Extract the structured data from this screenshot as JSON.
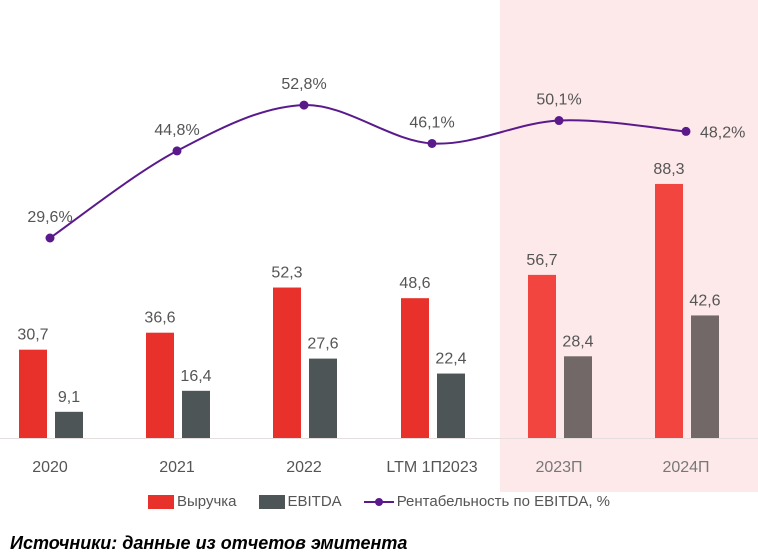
{
  "chart_data": {
    "type": "bar",
    "categories": [
      "2020",
      "2021",
      "2022",
      "LTM 1П2023",
      "2023П",
      "2024П"
    ],
    "forecast_categories": [
      "2023П",
      "2024П"
    ],
    "series": [
      {
        "name": "Выручка",
        "kind": "bar",
        "values": [
          30.7,
          36.6,
          52.3,
          48.6,
          56.7,
          88.3
        ],
        "labels": [
          "30,7",
          "36,6",
          "52,3",
          "48,6",
          "56,7",
          "88,3"
        ],
        "color": "#e8312a",
        "forecast_color": "#f2453f"
      },
      {
        "name": "EBITDA",
        "kind": "bar",
        "values": [
          9.1,
          16.4,
          27.6,
          22.4,
          28.4,
          42.6
        ],
        "labels": [
          "9,1",
          "16,4",
          "27,6",
          "22,4",
          "28,4",
          "42,6"
        ],
        "color": "#4d5557",
        "forecast_color": "#726868"
      },
      {
        "name": "Рентабельность по EBITDA, %",
        "kind": "line",
        "values": [
          29.6,
          44.8,
          52.8,
          46.1,
          50.1,
          48.2
        ],
        "labels": [
          "29,6%",
          "44,8%",
          "52,8%",
          "46,1%",
          "50,1%",
          "48,2%"
        ],
        "color": "#5a1a8c"
      }
    ],
    "forecast_highlight_color": "#fde9ea",
    "grid": false,
    "legend_placement": "bottom"
  },
  "source_note": "Источники: данные из отчетов эмитента"
}
